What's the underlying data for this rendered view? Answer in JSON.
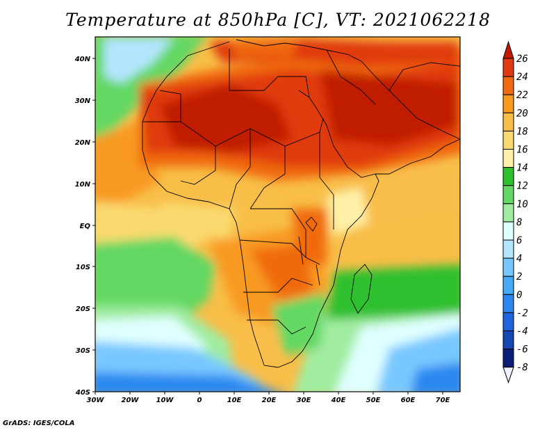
{
  "title": "Temperature at 850hPa [C], VT: 2021062218",
  "credit": "GrADS: IGES/COLA",
  "map": {
    "lon_labels": [
      "30W",
      "20W",
      "10W",
      "0",
      "10E",
      "20E",
      "30E",
      "40E",
      "50E",
      "60E",
      "70E"
    ],
    "lat_labels": [
      "40N",
      "30N",
      "20N",
      "10N",
      "EQ",
      "10S",
      "20S",
      "30S",
      "40S"
    ]
  },
  "colorbar": {
    "levels": [
      "26",
      "24",
      "22",
      "20",
      "18",
      "16",
      "14",
      "12",
      "10",
      "8",
      "6",
      "4",
      "2",
      "0",
      "-2",
      "-4",
      "-6",
      "-8"
    ],
    "colors": [
      "#c01a00",
      "#e03a10",
      "#f06a10",
      "#f89a20",
      "#f8be48",
      "#fada70",
      "#fff2a8",
      "#2ec02e",
      "#64d864",
      "#a0eca0",
      "#e0ffff",
      "#b4e6ff",
      "#78c8ff",
      "#46aaf8",
      "#2a88f0",
      "#1e64dc",
      "#1446b4",
      "#0a1e78",
      "#ecf0ff"
    ]
  }
}
